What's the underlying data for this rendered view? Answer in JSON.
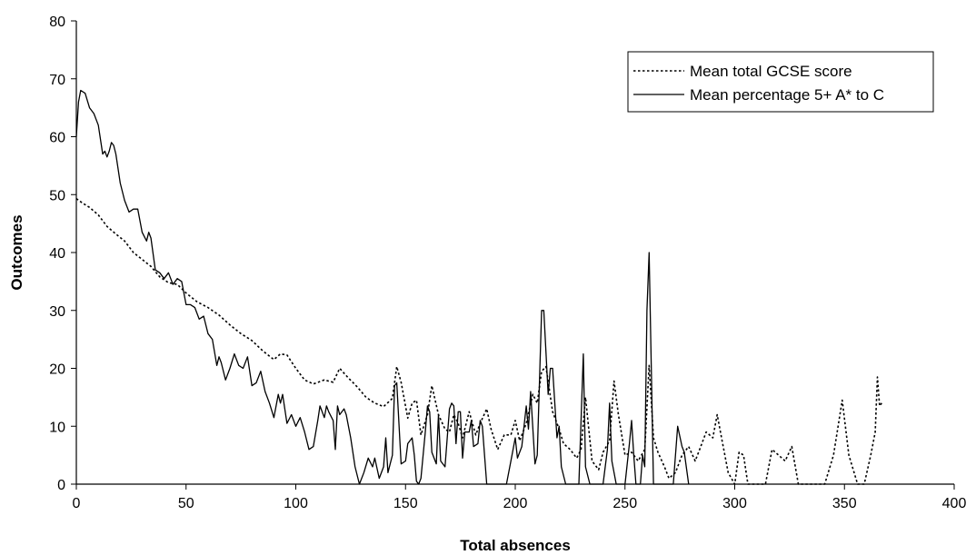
{
  "chart_data": {
    "type": "line",
    "xlabel": "Total absences",
    "ylabel": "Outcomes",
    "xlim": [
      0,
      400
    ],
    "ylim": [
      0,
      80
    ],
    "x_ticks": [
      0,
      50,
      100,
      150,
      200,
      250,
      300,
      350,
      400
    ],
    "y_ticks": [
      0,
      10,
      20,
      30,
      40,
      50,
      60,
      70,
      80
    ],
    "grid": false,
    "legend_position": "top-right",
    "series": [
      {
        "name": "Mean total GCSE score",
        "style": "dotted",
        "color": "#000000",
        "points": [
          [
            0,
            49.3
          ],
          [
            3,
            48.5
          ],
          [
            6,
            47.8
          ],
          [
            10,
            46.5
          ],
          [
            14,
            44.5
          ],
          [
            18,
            43.2
          ],
          [
            22,
            42.0
          ],
          [
            26,
            40.0
          ],
          [
            30,
            38.8
          ],
          [
            34,
            37.6
          ],
          [
            38,
            35.8
          ],
          [
            42,
            34.8
          ],
          [
            46,
            34.5
          ],
          [
            50,
            33.0
          ],
          [
            55,
            31.5
          ],
          [
            60,
            30.5
          ],
          [
            65,
            29.2
          ],
          [
            70,
            27.5
          ],
          [
            75,
            26.0
          ],
          [
            80,
            24.8
          ],
          [
            85,
            23.0
          ],
          [
            90,
            21.5
          ],
          [
            93,
            22.5
          ],
          [
            96,
            22.3
          ],
          [
            100,
            20.0
          ],
          [
            104,
            18.0
          ],
          [
            108,
            17.3
          ],
          [
            113,
            18.0
          ],
          [
            117,
            17.6
          ],
          [
            120,
            20.0
          ],
          [
            124,
            18.3
          ],
          [
            128,
            16.8
          ],
          [
            132,
            15.0
          ],
          [
            136,
            14.0
          ],
          [
            140,
            13.4
          ],
          [
            144,
            14.8
          ],
          [
            146,
            20.3
          ],
          [
            148,
            17.6
          ],
          [
            151,
            11.4
          ],
          [
            153,
            14.0
          ],
          [
            155,
            14.5
          ],
          [
            157,
            8.5
          ],
          [
            160,
            12.0
          ],
          [
            162,
            17.0
          ],
          [
            165,
            12.0
          ],
          [
            168,
            9.5
          ],
          [
            170,
            9.0
          ],
          [
            172,
            12.0
          ],
          [
            174,
            10.5
          ],
          [
            176,
            8.0
          ],
          [
            179,
            12.5
          ],
          [
            182,
            8.5
          ],
          [
            184,
            10.5
          ],
          [
            187,
            13.0
          ],
          [
            189,
            9.5
          ],
          [
            192,
            6.0
          ],
          [
            195,
            8.5
          ],
          [
            198,
            8.5
          ],
          [
            200,
            11.0
          ],
          [
            202,
            7.5
          ],
          [
            205,
            10.5
          ],
          [
            208,
            15.5
          ],
          [
            210,
            14.0
          ],
          [
            212,
            19.5
          ],
          [
            214,
            20.3
          ],
          [
            217,
            12.5
          ],
          [
            220,
            9.5
          ],
          [
            222,
            7.0
          ],
          [
            225,
            6.0
          ],
          [
            228,
            4.5
          ],
          [
            230,
            6.0
          ],
          [
            232,
            15.0
          ],
          [
            235,
            4.0
          ],
          [
            238,
            2.5
          ],
          [
            240,
            5.5
          ],
          [
            243,
            7.5
          ],
          [
            245,
            17.8
          ],
          [
            247,
            12.0
          ],
          [
            250,
            5.0
          ],
          [
            253,
            5.5
          ],
          [
            256,
            4.0
          ],
          [
            259,
            6.0
          ],
          [
            261,
            20.5
          ],
          [
            263,
            8.0
          ],
          [
            265,
            5.5
          ],
          [
            268,
            3.0
          ],
          [
            270,
            1.0
          ],
          [
            273,
            2.0
          ],
          [
            276,
            5.0
          ],
          [
            279,
            6.5
          ],
          [
            282,
            4.0
          ],
          [
            284,
            6.0
          ],
          [
            287,
            9.0
          ],
          [
            290,
            8.0
          ],
          [
            292,
            12.0
          ],
          [
            294,
            8.0
          ],
          [
            297,
            2.0
          ],
          [
            300,
            0.0
          ],
          [
            302,
            5.5
          ],
          [
            304,
            5.0
          ],
          [
            306,
            0.0
          ],
          [
            314,
            0.0
          ],
          [
            317,
            6.0
          ],
          [
            320,
            5.0
          ],
          [
            323,
            4.0
          ],
          [
            326,
            6.5
          ],
          [
            329,
            0.0
          ],
          [
            341,
            0.0
          ],
          [
            345,
            5.0
          ],
          [
            349,
            14.5
          ],
          [
            352,
            5.0
          ],
          [
            356,
            0.0
          ],
          [
            359,
            0.0
          ],
          [
            362,
            5.0
          ],
          [
            364,
            9.0
          ],
          [
            365,
            18.5
          ],
          [
            366,
            13.5
          ],
          [
            367,
            14.0
          ]
        ]
      },
      {
        "name": "Mean percentage 5+ A* to C",
        "style": "solid",
        "color": "#000000",
        "points": [
          [
            0,
            60.0
          ],
          [
            1,
            66.0
          ],
          [
            2,
            68.0
          ],
          [
            4,
            67.5
          ],
          [
            6,
            65.0
          ],
          [
            8,
            64.0
          ],
          [
            10,
            62.0
          ],
          [
            12,
            57.0
          ],
          [
            13,
            57.5
          ],
          [
            14,
            56.5
          ],
          [
            15,
            57.5
          ],
          [
            16,
            59.0
          ],
          [
            17,
            58.5
          ],
          [
            18,
            57.0
          ],
          [
            20,
            52.0
          ],
          [
            22,
            49.0
          ],
          [
            24,
            47.0
          ],
          [
            26,
            47.5
          ],
          [
            28,
            47.5
          ],
          [
            30,
            43.5
          ],
          [
            32,
            42.0
          ],
          [
            33,
            43.5
          ],
          [
            34,
            42.5
          ],
          [
            36,
            37.0
          ],
          [
            38,
            36.5
          ],
          [
            40,
            35.5
          ],
          [
            42,
            36.5
          ],
          [
            44,
            34.5
          ],
          [
            46,
            35.5
          ],
          [
            48,
            35.0
          ],
          [
            50,
            31.0
          ],
          [
            52,
            31.0
          ],
          [
            54,
            30.5
          ],
          [
            56,
            28.5
          ],
          [
            58,
            29.0
          ],
          [
            60,
            26.0
          ],
          [
            62,
            25.0
          ],
          [
            64,
            20.5
          ],
          [
            65,
            22.0
          ],
          [
            66,
            21.0
          ],
          [
            68,
            18.0
          ],
          [
            70,
            20.0
          ],
          [
            72,
            22.5
          ],
          [
            74,
            20.5
          ],
          [
            76,
            20.0
          ],
          [
            78,
            22.0
          ],
          [
            80,
            17.0
          ],
          [
            82,
            17.5
          ],
          [
            84,
            19.5
          ],
          [
            86,
            16.0
          ],
          [
            88,
            14.0
          ],
          [
            90,
            11.5
          ],
          [
            92,
            15.5
          ],
          [
            93,
            14.0
          ],
          [
            94,
            15.5
          ],
          [
            96,
            10.5
          ],
          [
            98,
            12.0
          ],
          [
            100,
            10.0
          ],
          [
            102,
            11.5
          ],
          [
            104,
            9.0
          ],
          [
            106,
            6.0
          ],
          [
            108,
            6.5
          ],
          [
            110,
            11.0
          ],
          [
            111,
            13.5
          ],
          [
            113,
            11.5
          ],
          [
            114,
            13.5
          ],
          [
            115,
            12.5
          ],
          [
            117,
            11.0
          ],
          [
            118,
            6.0
          ],
          [
            119,
            13.5
          ],
          [
            120,
            12.0
          ],
          [
            122,
            13.0
          ],
          [
            123,
            12.0
          ],
          [
            125,
            8.0
          ],
          [
            127,
            3.0
          ],
          [
            129,
            0.0
          ],
          [
            131,
            2.0
          ],
          [
            133,
            4.5
          ],
          [
            135,
            3.0
          ],
          [
            136,
            4.5
          ],
          [
            138,
            1.0
          ],
          [
            140,
            3.0
          ],
          [
            141,
            8.0
          ],
          [
            142,
            2.0
          ],
          [
            144,
            5.0
          ],
          [
            145,
            17.0
          ],
          [
            146,
            17.5
          ],
          [
            147,
            10.5
          ],
          [
            148,
            3.5
          ],
          [
            150,
            4.0
          ],
          [
            151,
            7.0
          ],
          [
            153,
            8.0
          ],
          [
            154,
            5.0
          ],
          [
            155,
            0.5
          ],
          [
            156,
            0.0
          ],
          [
            157,
            1.0
          ],
          [
            159,
            9.0
          ],
          [
            160,
            13.5
          ],
          [
            161,
            12.5
          ],
          [
            162,
            5.5
          ],
          [
            164,
            3.5
          ],
          [
            165,
            12.0
          ],
          [
            166,
            4.0
          ],
          [
            168,
            3.0
          ],
          [
            170,
            13.0
          ],
          [
            171,
            14.0
          ],
          [
            172,
            13.5
          ],
          [
            173,
            7.0
          ],
          [
            174,
            12.5
          ],
          [
            175,
            12.5
          ],
          [
            176,
            4.5
          ],
          [
            177,
            9.0
          ],
          [
            179,
            9.0
          ],
          [
            180,
            11.0
          ],
          [
            181,
            6.5
          ],
          [
            183,
            7.0
          ],
          [
            184,
            11.0
          ],
          [
            185,
            10.0
          ],
          [
            187,
            0.0
          ],
          [
            196,
            0.0
          ],
          [
            198,
            4.0
          ],
          [
            200,
            8.0
          ],
          [
            201,
            4.5
          ],
          [
            203,
            6.5
          ],
          [
            205,
            13.5
          ],
          [
            206,
            9.5
          ],
          [
            207,
            16.0
          ],
          [
            209,
            3.5
          ],
          [
            210,
            5.0
          ],
          [
            212,
            30.0
          ],
          [
            213,
            30.0
          ],
          [
            215,
            15.5
          ],
          [
            216,
            20.0
          ],
          [
            217,
            20.0
          ],
          [
            219,
            8.0
          ],
          [
            220,
            10.0
          ],
          [
            221,
            3.0
          ],
          [
            223,
            0.0
          ],
          [
            229,
            0.0
          ],
          [
            231,
            22.5
          ],
          [
            232,
            3.0
          ],
          [
            234,
            0.0
          ],
          [
            240,
            0.0
          ],
          [
            242,
            6.0
          ],
          [
            243,
            14.0
          ],
          [
            244,
            4.0
          ],
          [
            246,
            0.0
          ],
          [
            250,
            0.0
          ],
          [
            252,
            7.0
          ],
          [
            253,
            11.0
          ],
          [
            254,
            5.0
          ],
          [
            255,
            0.0
          ],
          [
            257,
            0.0
          ],
          [
            258,
            5.0
          ],
          [
            259,
            3.0
          ],
          [
            260,
            30.0
          ],
          [
            261,
            40.0
          ],
          [
            262,
            20.0
          ],
          [
            263,
            0.0
          ],
          [
            272,
            0.0
          ],
          [
            274,
            10.0
          ],
          [
            276,
            6.5
          ],
          [
            277,
            5.5
          ],
          [
            279,
            0.0
          ]
        ]
      }
    ]
  }
}
